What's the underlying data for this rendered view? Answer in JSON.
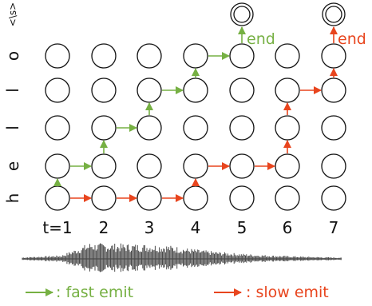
{
  "colors": {
    "fast": "#76b043",
    "slow": "#e8451e",
    "node": "#111111"
  },
  "y_tokens": [
    "h",
    "e",
    "l",
    "l",
    "o",
    "<\\s>"
  ],
  "time_labels": [
    "t=1",
    "2",
    "3",
    "4",
    "5",
    "6",
    "7"
  ],
  "fast_path": [
    [
      1,
      0
    ],
    [
      1,
      1
    ],
    [
      2,
      1
    ],
    [
      2,
      2
    ],
    [
      3,
      2
    ],
    [
      3,
      3
    ],
    [
      4,
      3
    ],
    [
      4,
      4
    ],
    [
      5,
      4
    ],
    [
      5,
      5
    ]
  ],
  "slow_path": [
    [
      1,
      0
    ],
    [
      2,
      0
    ],
    [
      3,
      0
    ],
    [
      4,
      0
    ],
    [
      4,
      1
    ],
    [
      5,
      1
    ],
    [
      6,
      1
    ],
    [
      6,
      2
    ],
    [
      6,
      3
    ],
    [
      7,
      3
    ],
    [
      7,
      4
    ],
    [
      7,
      5
    ]
  ],
  "end_labels": {
    "fast": "end",
    "slow": "end"
  },
  "legend": {
    "fast": ": fast emit",
    "slow": ": slow emit"
  }
}
